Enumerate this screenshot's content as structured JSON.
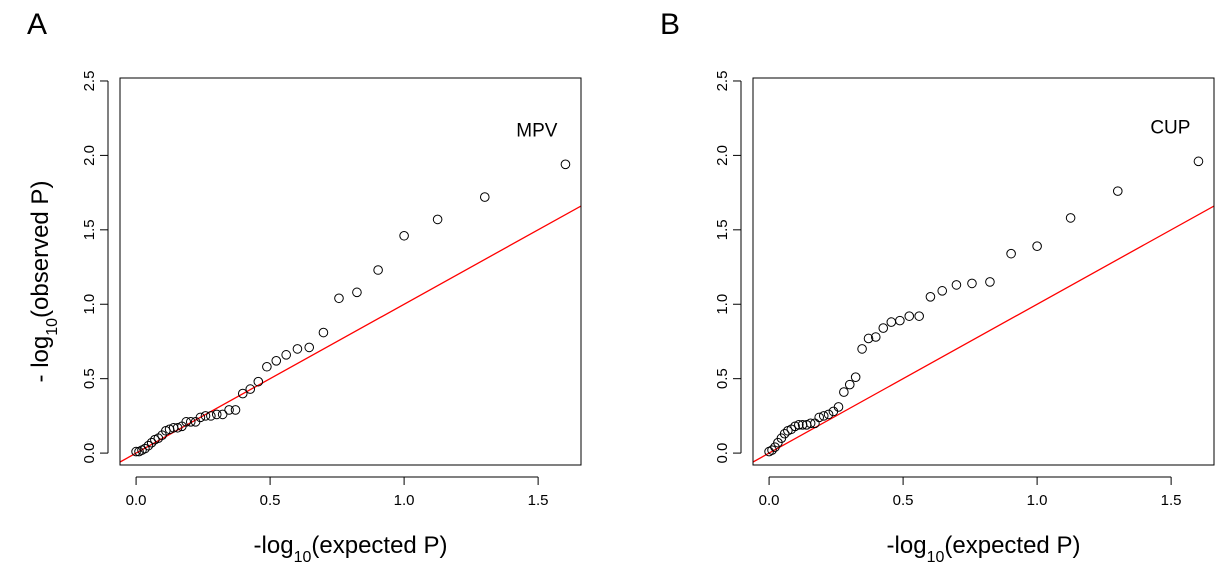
{
  "chart_data": [
    {
      "type": "scatter",
      "panel": "A",
      "annotation": "MPV",
      "xlabel": {
        "prefix": "-log",
        "sub": "10",
        "suffix": "(expected P)"
      },
      "ylabel": {
        "prefix": "- log",
        "sub": "10",
        "suffix": "(observed P)"
      },
      "x": [
        1.602,
        1.301,
        1.125,
        1.0,
        0.903,
        0.824,
        0.757,
        0.699,
        0.646,
        0.602,
        0.56,
        0.523,
        0.488,
        0.456,
        0.426,
        0.398,
        0.371,
        0.347,
        0.323,
        0.301,
        0.279,
        0.259,
        0.24,
        0.222,
        0.204,
        0.187,
        0.171,
        0.155,
        0.14,
        0.125,
        0.111,
        0.097,
        0.083,
        0.07,
        0.058,
        0.046,
        0.033,
        0.022,
        0.011,
        0
      ],
      "values": [
        1.94,
        1.72,
        1.57,
        1.46,
        1.23,
        1.08,
        1.04,
        0.81,
        0.71,
        0.7,
        0.66,
        0.62,
        0.58,
        0.48,
        0.43,
        0.4,
        0.29,
        0.29,
        0.26,
        0.26,
        0.25,
        0.25,
        0.24,
        0.21,
        0.21,
        0.21,
        0.18,
        0.17,
        0.17,
        0.16,
        0.15,
        0.12,
        0.1,
        0.09,
        0.07,
        0.05,
        0.03,
        0.02,
        0.01,
        0.01
      ],
      "color": "#000000",
      "reference_line": {
        "slope": 1,
        "intercept": 0,
        "color": "#ff0000"
      },
      "xlim": [
        -0.06,
        1.66
      ],
      "ylim": [
        -0.08,
        2.52
      ],
      "xticks": [
        {
          "value": 0,
          "label": "0.0"
        },
        0.5,
        {
          "value": 1,
          "label": "1.0"
        },
        1.5
      ],
      "yticks": [
        {
          "value": 0,
          "label": "0.0"
        },
        0.5,
        {
          "value": 1,
          "label": "1.0"
        },
        1.5,
        {
          "value": 2,
          "label": "2.0"
        },
        2.5
      ]
    },
    {
      "type": "scatter",
      "panel": "B",
      "annotation": "CUP",
      "xlabel": {
        "prefix": "-log",
        "sub": "10",
        "suffix": "(expected P)"
      },
      "x": [
        1.602,
        1.301,
        1.125,
        1.0,
        0.903,
        0.824,
        0.757,
        0.699,
        0.646,
        0.602,
        0.56,
        0.523,
        0.488,
        0.456,
        0.426,
        0.398,
        0.371,
        0.347,
        0.323,
        0.301,
        0.279,
        0.259,
        0.24,
        0.222,
        0.204,
        0.187,
        0.171,
        0.155,
        0.14,
        0.125,
        0.111,
        0.097,
        0.083,
        0.07,
        0.058,
        0.046,
        0.033,
        0.022,
        0.011,
        0
      ],
      "values": [
        1.96,
        1.76,
        1.58,
        1.39,
        1.34,
        1.15,
        1.14,
        1.13,
        1.09,
        1.05,
        0.92,
        0.92,
        0.89,
        0.88,
        0.84,
        0.78,
        0.77,
        0.7,
        0.51,
        0.46,
        0.41,
        0.31,
        0.28,
        0.26,
        0.25,
        0.24,
        0.2,
        0.2,
        0.19,
        0.19,
        0.19,
        0.18,
        0.16,
        0.15,
        0.13,
        0.1,
        0.07,
        0.04,
        0.02,
        0.01
      ],
      "color": "#000000",
      "reference_line": {
        "slope": 1,
        "intercept": 0,
        "color": "#ff0000"
      },
      "xlim": [
        -0.06,
        1.66
      ],
      "ylim": [
        -0.08,
        2.52
      ],
      "xticks": [
        {
          "value": 0,
          "label": "0.0"
        },
        0.5,
        {
          "value": 1,
          "label": "1.0"
        },
        1.5
      ],
      "yticks": [
        {
          "value": 0,
          "label": "0.0"
        },
        0.5,
        {
          "value": 1,
          "label": "1.0"
        },
        1.5,
        {
          "value": 2,
          "label": "2.0"
        },
        2.5
      ]
    }
  ]
}
